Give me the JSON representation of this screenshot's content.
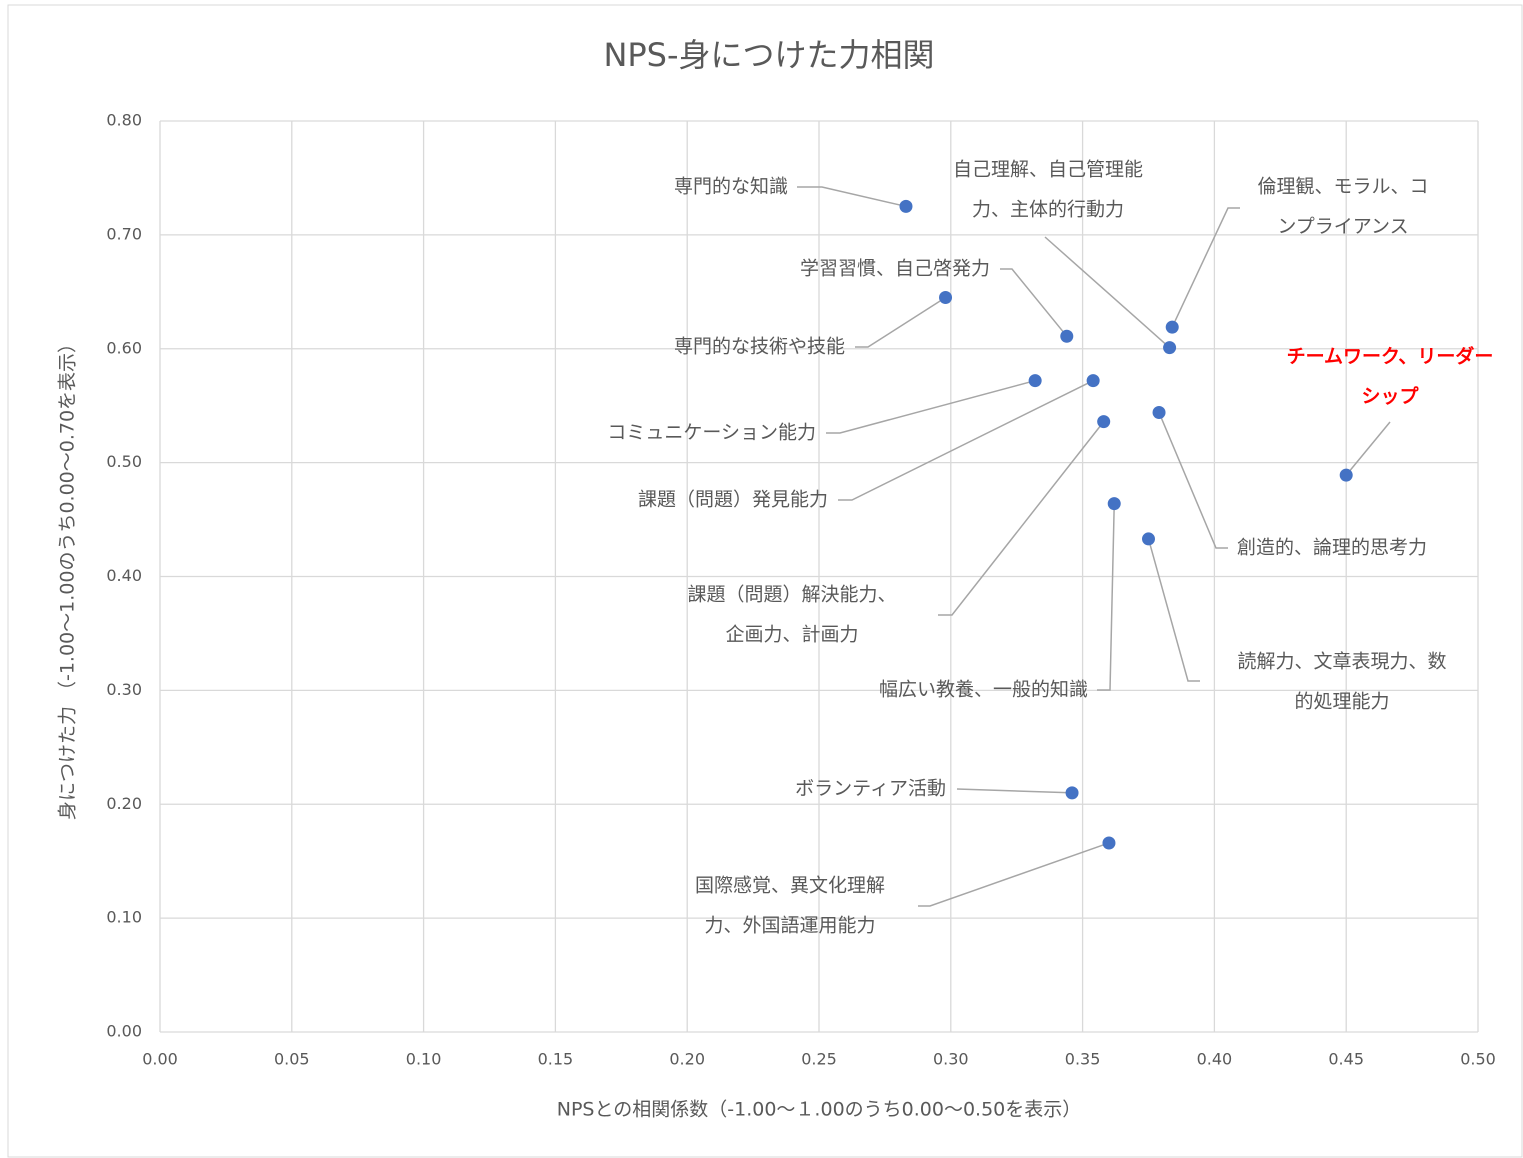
{
  "chart_data": {
    "type": "scatter",
    "title": "NPS-身につけた力相関",
    "x_label": "NPSとの相関係数（-1.00～１.00のうち0.00～0.50を表示）",
    "y_label": "身につけた力 （-1.00～1.00のうち0.00～0.70を表示）",
    "xlim": [
      0,
      0.5
    ],
    "ylim": [
      0,
      0.8
    ],
    "xticks": [
      {
        "value": 0,
        "label": "0.00"
      },
      {
        "value": 0.05,
        "label": "0.05"
      },
      {
        "value": 0.1,
        "label": "0.10"
      },
      {
        "value": 0.15,
        "label": "0.15"
      },
      {
        "value": 0.2,
        "label": "0.20"
      },
      {
        "value": 0.25,
        "label": "0.25"
      },
      {
        "value": 0.3,
        "label": "0.30"
      },
      {
        "value": 0.35,
        "label": "0.35"
      },
      {
        "value": 0.4,
        "label": "0.40"
      },
      {
        "value": 0.45,
        "label": "0.45"
      },
      {
        "value": 0.5,
        "label": "0.50"
      }
    ],
    "yticks": [
      {
        "value": 0,
        "label": "0.00"
      },
      {
        "value": 0.1,
        "label": "0.10"
      },
      {
        "value": 0.2,
        "label": "0.20"
      },
      {
        "value": 0.3,
        "label": "0.30"
      },
      {
        "value": 0.4,
        "label": "0.40"
      },
      {
        "value": 0.5,
        "label": "0.50"
      },
      {
        "value": 0.6,
        "label": "0.60"
      },
      {
        "value": 0.7,
        "label": "0.70"
      },
      {
        "value": 0.8,
        "label": "0.80"
      }
    ],
    "grid": true,
    "color": "#4472c4",
    "label_color": "#595959",
    "points": [
      {
        "label": [
          "専門的な知識"
        ],
        "x": 0.283,
        "y": 0.725
      },
      {
        "label": [
          "学習習慣、自己啓発力"
        ],
        "x": 0.344,
        "y": 0.611
      },
      {
        "label": [
          "専門的な技術や技能"
        ],
        "x": 0.298,
        "y": 0.645
      },
      {
        "label": [
          "自己理解、自己管理能",
          "力、主体的行動力"
        ],
        "x": 0.383,
        "y": 0.601
      },
      {
        "label": [
          "倫理観、モラル、コ",
          "ンプライアンス"
        ],
        "x": 0.384,
        "y": 0.619
      },
      {
        "label": [
          "チームワーク、リーダー",
          "シップ"
        ],
        "x": 0.45,
        "y": 0.489,
        "label_color": "#ff0000",
        "label_bold": true
      },
      {
        "label": [
          "コミュニケーション能力"
        ],
        "x": 0.332,
        "y": 0.572
      },
      {
        "label": [
          "課題（問題）発見能力"
        ],
        "x": 0.354,
        "y": 0.572
      },
      {
        "label": [
          "課題（問題）解決能力、",
          "企画力、計画力"
        ],
        "x": 0.358,
        "y": 0.536
      },
      {
        "label": [
          "創造的、論理的思考力"
        ],
        "x": 0.379,
        "y": 0.544
      },
      {
        "label": [
          "幅広い教養、一般的知識"
        ],
        "x": 0.362,
        "y": 0.464
      },
      {
        "label": [
          "読解力、文章表現力、数",
          "的処理能力"
        ],
        "x": 0.375,
        "y": 0.433
      },
      {
        "label": [
          "ボランティア活動"
        ],
        "x": 0.346,
        "y": 0.21
      },
      {
        "label": [
          "国際感覚、異文化理解",
          "力、外国語運用能力"
        ],
        "x": 0.36,
        "y": 0.166
      }
    ]
  }
}
